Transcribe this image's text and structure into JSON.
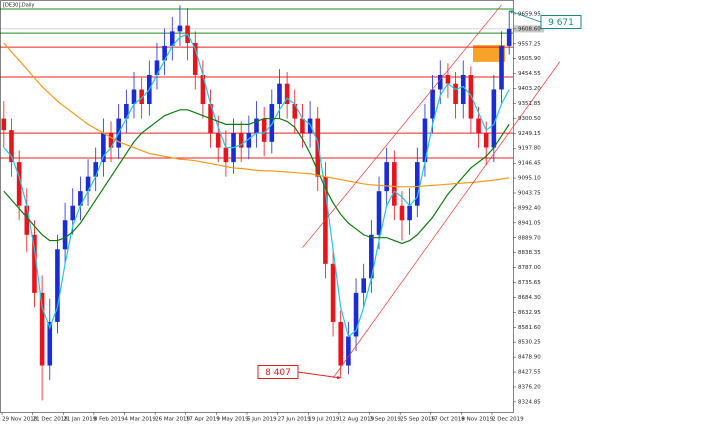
{
  "chart_data": {
    "type": "candlestick",
    "title": "[DE30],Daily",
    "categories": [
      "29 Nov 2018",
      null,
      null,
      null,
      "21 Dec 2018",
      null,
      null,
      null,
      "21 Jan 2019",
      null,
      null,
      null,
      "8 Feb 2019",
      null,
      null,
      null,
      "4 Mar 2019",
      null,
      null,
      null,
      "26 Mar 2019",
      null,
      null,
      null,
      "17 Apr 2019",
      null,
      null,
      null,
      "9 May 2019",
      null,
      null,
      null,
      "5 Jun 2019",
      null,
      null,
      null,
      "27 Jun 2019",
      null,
      null,
      null,
      "19 Jul 2019",
      null,
      null,
      null,
      "12 Aug 2019",
      null,
      null,
      null,
      "3 Sep 2019",
      null,
      null,
      null,
      "25 Sep 2019",
      null,
      null,
      null,
      "17 Oct 2019",
      null,
      null,
      null,
      "8 Nov 2019",
      null,
      null,
      null,
      "2 Dec 2019",
      null,
      null
    ],
    "open": [
      9300,
      9260,
      9150,
      9000,
      8900,
      8700,
      8450,
      8600,
      8850,
      8950,
      9000,
      9050,
      9100,
      9150,
      9250,
      9200,
      9300,
      9350,
      9400,
      9350,
      9450,
      9500,
      9550,
      9600,
      9620,
      9560,
      9450,
      9350,
      9250,
      9200,
      9150,
      9250,
      9200,
      9250,
      9300,
      9220,
      9350,
      9420,
      9350,
      9300,
      9250,
      9300,
      9100,
      8800,
      8600,
      8450,
      8550,
      8700,
      8750,
      8900,
      9050,
      9150,
      9000,
      8950,
      9000,
      9150,
      9300,
      9400,
      9450,
      9420,
      9350,
      9450,
      9300,
      9250,
      9200,
      9400,
      9550
    ],
    "high": [
      9360,
      9300,
      9190,
      9060,
      8950,
      8760,
      8680,
      8900,
      9010,
      9060,
      9100,
      9160,
      9200,
      9300,
      9290,
      9350,
      9400,
      9460,
      9440,
      9500,
      9560,
      9610,
      9650,
      9690,
      9680,
      9600,
      9500,
      9400,
      9310,
      9260,
      9300,
      9290,
      9310,
      9360,
      9340,
      9400,
      9470,
      9460,
      9400,
      9350,
      9360,
      9340,
      9150,
      8850,
      8640,
      8600,
      8750,
      8800,
      8950,
      9100,
      9200,
      9190,
      9050,
      9060,
      9200,
      9350,
      9450,
      9500,
      9490,
      9460,
      9500,
      9480,
      9340,
      9290,
      9450,
      9600,
      9671
    ],
    "low": [
      9200,
      9100,
      8950,
      8840,
      8650,
      8330,
      8400,
      8560,
      8800,
      8900,
      8950,
      9000,
      9050,
      9100,
      9150,
      9160,
      9250,
      9300,
      9300,
      9310,
      9400,
      9450,
      9500,
      9550,
      9500,
      9400,
      9300,
      9200,
      9150,
      9100,
      9110,
      9150,
      9160,
      9200,
      9170,
      9180,
      9300,
      9300,
      9250,
      9200,
      9200,
      9050,
      8750,
      8550,
      8407,
      8420,
      8500,
      8650,
      8700,
      8850,
      9000,
      8950,
      8880,
      8900,
      8960,
      9100,
      9250,
      9350,
      9370,
      9300,
      9300,
      9250,
      9200,
      9140,
      9150,
      9350,
      9520
    ],
    "close": [
      9260,
      9150,
      9000,
      8900,
      8700,
      8450,
      8600,
      8850,
      8950,
      9000,
      9050,
      9100,
      9150,
      9250,
      9200,
      9300,
      9350,
      9400,
      9350,
      9450,
      9500,
      9550,
      9600,
      9620,
      9560,
      9450,
      9350,
      9250,
      9200,
      9150,
      9250,
      9200,
      9250,
      9300,
      9220,
      9350,
      9420,
      9350,
      9300,
      9250,
      9300,
      9100,
      8800,
      8600,
      8450,
      8550,
      8700,
      8750,
      8900,
      9050,
      9150,
      9000,
      8950,
      9000,
      9150,
      9300,
      9400,
      9450,
      9420,
      9350,
      9450,
      9300,
      9250,
      9200,
      9400,
      9550,
      9608.6
    ],
    "up_color": "#1b2bd6",
    "down_color": "#e8141c",
    "series": [
      {
        "color": "#22c8e8",
        "values": [
          9200,
          9170,
          9100,
          9000,
          8850,
          8650,
          8580,
          8650,
          8800,
          8930,
          9000,
          9050,
          9100,
          9170,
          9200,
          9250,
          9300,
          9350,
          9370,
          9400,
          9450,
          9500,
          9550,
          9580,
          9590,
          9540,
          9450,
          9350,
          9270,
          9200,
          9200,
          9210,
          9230,
          9250,
          9250,
          9280,
          9330,
          9370,
          9350,
          9300,
          9280,
          9220,
          9050,
          8850,
          8650,
          8550,
          8570,
          8650,
          8750,
          8880,
          9000,
          9050,
          9030,
          9000,
          9030,
          9150,
          9280,
          9380,
          9420,
          9400,
          9410,
          9380,
          9320,
          9260,
          9280,
          9350,
          9400
        ]
      },
      {
        "color": "#0e7a12",
        "values": [
          9050,
          9020,
          8990,
          8960,
          8930,
          8900,
          8880,
          8880,
          8890,
          8910,
          8940,
          8980,
          9020,
          9060,
          9100,
          9140,
          9180,
          9220,
          9250,
          9270,
          9290,
          9310,
          9320,
          9330,
          9330,
          9320,
          9310,
          9300,
          9290,
          9280,
          9280,
          9280,
          9280,
          9290,
          9300,
          9300,
          9300,
          9290,
          9270,
          9230,
          9180,
          9120,
          9060,
          9010,
          8970,
          8940,
          8920,
          8900,
          8890,
          8890,
          8890,
          8880,
          8870,
          8880,
          8900,
          8930,
          8960,
          9000,
          9040,
          9070,
          9100,
          9130,
          9150,
          9170,
          9200,
          9240,
          9280
        ]
      },
      {
        "color": "#f39a1e",
        "values": [
          9560,
          9530,
          9500,
          9470,
          9440,
          9410,
          9385,
          9360,
          9340,
          9320,
          9300,
          9280,
          9265,
          9250,
          9235,
          9220,
          9210,
          9200,
          9190,
          9180,
          9175,
          9170,
          9165,
          9160,
          9158,
          9155,
          9150,
          9145,
          9140,
          9135,
          9130,
          9128,
          9125,
          9122,
          9120,
          9120,
          9118,
          9116,
          9114,
          9112,
          9110,
          9105,
          9100,
          9095,
          9090,
          9085,
          9080,
          9075,
          9072,
          9070,
          9068,
          9066,
          9065,
          9065,
          9066,
          9068,
          9070,
          9072,
          9074,
          9076,
          9078,
          9080,
          9082,
          9085,
          9088,
          9092,
          9096
        ]
      }
    ],
    "levels": [
      {
        "value": 9677,
        "color": "#1d8a1d"
      },
      {
        "value": 9594,
        "color": "#1d8a1d"
      },
      {
        "value": 9546,
        "color": "#f02020"
      },
      {
        "value": 9443,
        "color": "#f02020"
      },
      {
        "value": 9250,
        "color": "#f02020"
      },
      {
        "value": 9164,
        "color": "#f02020"
      }
    ],
    "zone": {
      "low": 9495,
      "high": 9553,
      "color": "#f7a22a"
    },
    "channels": [
      {
        "color": "#f03a3a",
        "start": [
          39,
          8855
        ],
        "end": [
          65,
          9691
        ]
      },
      {
        "color": "#f03a3a",
        "start": [
          43,
          8407
        ],
        "end": [
          72.6,
          9495
        ]
      }
    ],
    "annotations": [
      {
        "text": "9 671",
        "value": 9671,
        "color": "#1a8a8a"
      },
      {
        "text": "8 407",
        "value": 8407,
        "color": "#e02424"
      }
    ],
    "ylim": [
      8290,
      9708
    ],
    "yticks": [
      9659.95,
      {
        "value": 9608.6,
        "label": "9608.60"
      },
      9557.25,
      {
        "value": 9505.9,
        "label": "9505.90"
      },
      9454.55,
      {
        "value": 9403.2,
        "label": "9403.20"
      },
      9351.85,
      {
        "value": 9300.5,
        "label": "9300.50"
      },
      9249.15,
      {
        "value": 9197.8,
        "label": "9197.80"
      },
      9146.45,
      {
        "value": 9095.1,
        "label": "9095.10"
      },
      9043.75,
      {
        "value": 8992.4,
        "label": "8992.40"
      },
      8941.05,
      {
        "value": 8889.7,
        "label": "8889.70"
      },
      8838.35,
      {
        "value": 8787,
        "label": "8787.00"
      },
      8735.65,
      {
        "value": 8684.3,
        "label": "8684.30"
      },
      8632.95,
      {
        "value": 8581.6,
        "label": "8581.60"
      },
      8530.25,
      {
        "value": 8478.9,
        "label": "8478.90"
      },
      8427.55,
      {
        "value": 8376.2,
        "label": "8376.20"
      },
      8324.85
    ]
  }
}
